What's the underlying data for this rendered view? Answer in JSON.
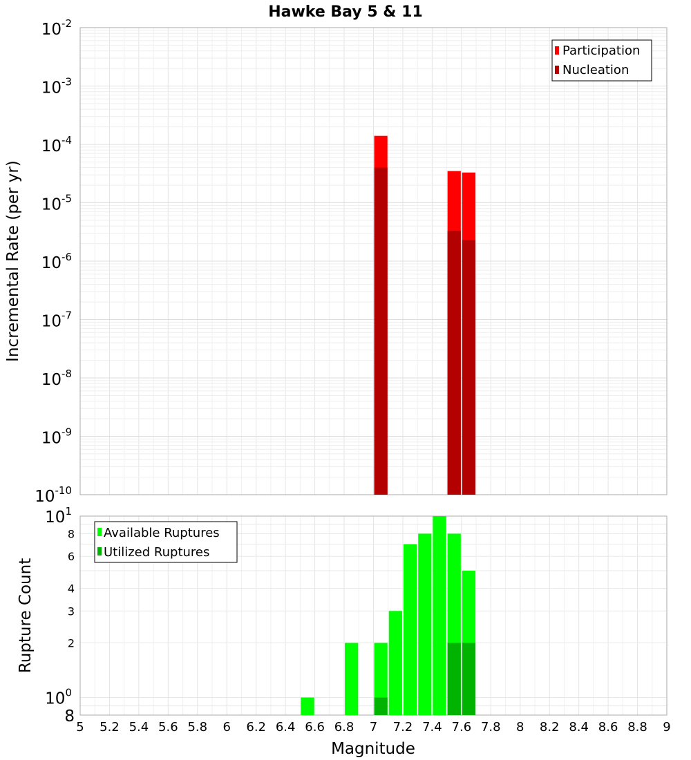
{
  "chart_data": [
    {
      "type": "bar",
      "title": "Hawke Bay 5 & 11",
      "xlabel": "",
      "ylabel": "Incremental Rate (per yr)",
      "yscale": "log",
      "ylim": [
        1e-10,
        0.01
      ],
      "xlim": [
        5,
        9
      ],
      "bin_width": 0.1,
      "y_tick_exponents": [
        "-10",
        "-9",
        "-8",
        "-7",
        "-6",
        "-5",
        "-4",
        "-3",
        "-2"
      ],
      "y_tick_base": "10",
      "legend_position": "top-right",
      "series": [
        {
          "name": "Participation",
          "color": "#ff0000",
          "x": [
            7.05,
            7.55,
            7.65
          ],
          "values": [
            0.00014,
            3.5e-05,
            3.3e-05
          ]
        },
        {
          "name": "Nucleation",
          "color": "#b30000",
          "x": [
            7.05,
            7.55,
            7.65
          ],
          "values": [
            4e-05,
            3.3e-06,
            2.3e-06
          ]
        }
      ]
    },
    {
      "type": "bar",
      "title": "",
      "xlabel": "Magnitude",
      "ylabel": "Rupture Count",
      "yscale": "log",
      "ylim": [
        0.8,
        10
      ],
      "xlim": [
        5,
        9
      ],
      "bin_width": 0.1,
      "x_tick_labels": [
        "5",
        "5.2",
        "5.4",
        "5.6",
        "5.8",
        "6",
        "6.2",
        "6.4",
        "6.6",
        "6.8",
        "7",
        "7.2",
        "7.4",
        "7.6",
        "7.8",
        "8",
        "8.2",
        "8.4",
        "8.6",
        "8.8",
        "9"
      ],
      "y_tick_labels": [
        {
          "value": 10,
          "label": "10",
          "sup": "1"
        },
        {
          "value": 8,
          "label": "8",
          "sup": ""
        },
        {
          "value": 6,
          "label": "6",
          "sup": ""
        },
        {
          "value": 4,
          "label": "4",
          "sup": ""
        },
        {
          "value": 3,
          "label": "3",
          "sup": ""
        },
        {
          "value": 2,
          "label": "2",
          "sup": ""
        },
        {
          "value": 1,
          "label": "10",
          "sup": "0"
        },
        {
          "value": 0.8,
          "label": "8",
          "sup": ""
        }
      ],
      "legend_position": "top-left",
      "series": [
        {
          "name": "Available Ruptures",
          "color": "#00ff00",
          "x": [
            6.55,
            6.85,
            7.05,
            7.15,
            7.25,
            7.35,
            7.45,
            7.55,
            7.65
          ],
          "values": [
            1,
            2,
            2,
            3,
            7,
            8,
            10,
            8,
            5
          ]
        },
        {
          "name": "Utilized Ruptures",
          "color": "#00b300",
          "x": [
            7.05,
            7.55,
            7.65
          ],
          "values": [
            1,
            2,
            2
          ]
        }
      ]
    }
  ]
}
